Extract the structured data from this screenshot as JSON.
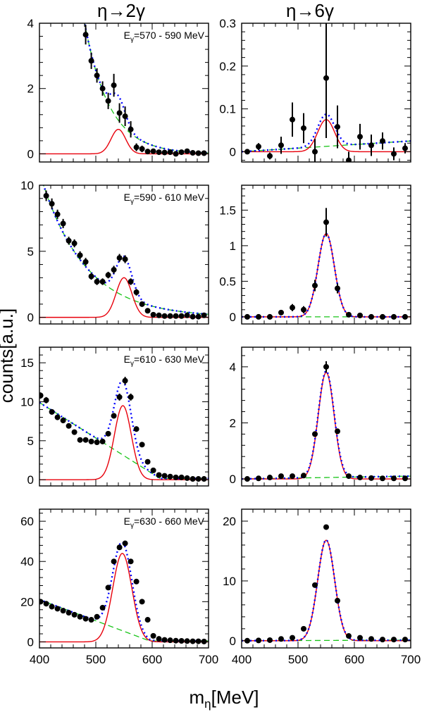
{
  "figure": {
    "column_titles": [
      "η→2γ",
      "η→6γ"
    ],
    "y_axis_label": "counts[a.u.]",
    "x_axis_label": "m_η[MeV]",
    "x_axis_label_parts": {
      "main": "m",
      "sub": "η",
      "rest": "[MeV]"
    }
  },
  "chart_data": [
    {
      "type": "scatter",
      "panel": "row1-left",
      "channel": "η→2γ",
      "annotation": "E_γ=570 - 590 MeV",
      "xlim": [
        400,
        700
      ],
      "ylim": [
        -0.25,
        4
      ],
      "xticks": [
        400,
        500,
        600,
        700
      ],
      "yticks": [
        0,
        2,
        4
      ],
      "show_xticklabels": false,
      "points": [
        [
          482,
          3.65
        ],
        [
          492,
          2.85
        ],
        [
          502,
          2.4
        ],
        [
          512,
          2.0
        ],
        [
          522,
          1.62
        ],
        [
          532,
          2.1
        ],
        [
          542,
          1.25
        ],
        [
          552,
          1.15
        ],
        [
          562,
          0.75
        ],
        [
          572,
          0.2
        ],
        [
          582,
          0.15
        ],
        [
          592,
          0.07
        ],
        [
          602,
          0.08
        ],
        [
          612,
          0.05
        ],
        [
          622,
          0.04
        ],
        [
          632,
          0.05
        ],
        [
          642,
          0.0
        ],
        [
          652,
          0.05
        ],
        [
          662,
          0.08
        ],
        [
          672,
          0.03
        ],
        [
          682,
          0.02
        ],
        [
          692,
          0.02
        ]
      ],
      "errors": [
        0.3,
        0.25,
        0.22,
        0.22,
        0.25,
        0.35,
        0.3,
        0.3,
        0.25,
        0.12,
        0.1,
        0.06,
        0.06,
        0.05,
        0.05,
        0.05,
        0.04,
        0.04,
        0.05,
        0.04,
        0.04,
        0.04
      ],
      "signal": {
        "amp": 0.75,
        "mean": 540,
        "sigma": 13
      },
      "background": {
        "kind": "exp",
        "a": 4.5,
        "x0": 475,
        "tau": 44
      }
    },
    {
      "type": "scatter",
      "panel": "row1-right",
      "channel": "η→6γ",
      "xlim": [
        400,
        700
      ],
      "ylim": [
        -0.024,
        0.3
      ],
      "xticks": [
        400,
        500,
        600,
        700
      ],
      "yticks": [
        0,
        0.1,
        0.2,
        0.3
      ],
      "show_xticklabels": false,
      "points": [
        [
          410,
          0.0
        ],
        [
          430,
          0.012
        ],
        [
          450,
          -0.01
        ],
        [
          470,
          0.015
        ],
        [
          490,
          0.075
        ],
        [
          510,
          0.055
        ],
        [
          530,
          0.0
        ],
        [
          550,
          0.172
        ],
        [
          570,
          0.058
        ],
        [
          590,
          -0.02
        ],
        [
          610,
          0.035
        ],
        [
          630,
          0.015
        ],
        [
          650,
          0.025
        ],
        [
          670,
          -0.005
        ],
        [
          690,
          0.008
        ]
      ],
      "errors": [
        0.005,
        0.008,
        0.008,
        0.02,
        0.04,
        0.035,
        0.03,
        0.14,
        0.05,
        0.02,
        0.03,
        0.025,
        0.02,
        0.015,
        0.012
      ],
      "signal": {
        "amp": 0.075,
        "mean": 550,
        "sigma": 15
      },
      "background": {
        "kind": "poly",
        "c0": 0.0,
        "c1": 0.025,
        "start": 400,
        "end": 700
      }
    },
    {
      "type": "scatter",
      "panel": "row2-left",
      "channel": "η→2γ",
      "annotation": "E_γ=590 - 610 MeV",
      "xlim": [
        400,
        700
      ],
      "ylim": [
        -0.5,
        10
      ],
      "xticks": [
        400,
        500,
        600,
        700
      ],
      "yticks": [
        0,
        5,
        10
      ],
      "show_xticklabels": false,
      "points": [
        [
          412,
          9.2
        ],
        [
          422,
          8.6
        ],
        [
          432,
          7.8
        ],
        [
          442,
          7.1
        ],
        [
          452,
          5.8
        ],
        [
          462,
          5.6
        ],
        [
          472,
          4.7
        ],
        [
          482,
          4.2
        ],
        [
          492,
          3.1
        ],
        [
          502,
          2.7
        ],
        [
          512,
          2.7
        ],
        [
          522,
          3.2
        ],
        [
          532,
          3.6
        ],
        [
          542,
          4.5
        ],
        [
          552,
          4.4
        ],
        [
          562,
          2.7
        ],
        [
          572,
          1.9
        ],
        [
          582,
          1.0
        ],
        [
          592,
          0.5
        ],
        [
          602,
          0.2
        ],
        [
          612,
          0.15
        ],
        [
          622,
          0.1
        ],
        [
          632,
          0.1
        ],
        [
          642,
          0.1
        ],
        [
          652,
          0.1
        ],
        [
          662,
          0.15
        ],
        [
          672,
          0.05
        ],
        [
          682,
          0.05
        ],
        [
          692,
          0.15
        ]
      ],
      "errors": [
        0.4,
        0.4,
        0.35,
        0.35,
        0.3,
        0.3,
        0.3,
        0.3,
        0.25,
        0.25,
        0.25,
        0.25,
        0.3,
        0.3,
        0.3,
        0.25,
        0.25,
        0.2,
        0.15,
        0.12,
        0.1,
        0.1,
        0.1,
        0.1,
        0.1,
        0.1,
        0.1,
        0.1,
        0.1
      ],
      "signal": {
        "amp": 3.0,
        "mean": 550,
        "sigma": 14
      },
      "background": {
        "kind": "exp",
        "a": 10.3,
        "x0": 405,
        "tau": 78
      }
    },
    {
      "type": "scatter",
      "panel": "row2-right",
      "channel": "η→6γ",
      "xlim": [
        400,
        700
      ],
      "ylim": [
        -0.1,
        1.85
      ],
      "xticks": [
        400,
        500,
        600,
        700
      ],
      "yticks": [
        0,
        0.5,
        1,
        1.5
      ],
      "show_xticklabels": false,
      "points": [
        [
          410,
          0.0
        ],
        [
          430,
          0.0
        ],
        [
          450,
          0.0
        ],
        [
          470,
          0.06
        ],
        [
          490,
          0.13
        ],
        [
          510,
          0.1
        ],
        [
          530,
          0.44
        ],
        [
          550,
          1.33
        ],
        [
          570,
          0.4
        ],
        [
          590,
          0.03
        ],
        [
          610,
          0.02
        ],
        [
          630,
          0.0
        ],
        [
          650,
          0.0
        ],
        [
          670,
          0.0
        ],
        [
          690,
          0.0
        ]
      ],
      "errors": [
        0.01,
        0.02,
        0.02,
        0.03,
        0.05,
        0.05,
        0.08,
        0.2,
        0.07,
        0.03,
        0.03,
        0.02,
        0.02,
        0.02,
        0.02
      ],
      "signal": {
        "amp": 1.17,
        "mean": 550,
        "sigma": 14.5
      },
      "background": {
        "kind": "poly",
        "c0": 0.0,
        "c1": 0.0,
        "start": 400,
        "end": 700
      }
    },
    {
      "type": "scatter",
      "panel": "row3-left",
      "channel": "η→2γ",
      "annotation": "E_γ=610 - 630 MeV",
      "xlim": [
        400,
        700
      ],
      "ylim": [
        -0.8,
        17
      ],
      "xticks": [
        400,
        500,
        600,
        700
      ],
      "yticks": [
        0,
        5,
        10,
        15
      ],
      "show_xticklabels": false,
      "points": [
        [
          402,
          10.8
        ],
        [
          412,
          10.2
        ],
        [
          422,
          8.7
        ],
        [
          432,
          8.0
        ],
        [
          442,
          7.6
        ],
        [
          452,
          6.9
        ],
        [
          462,
          6.1
        ],
        [
          472,
          5.1
        ],
        [
          482,
          5.1
        ],
        [
          492,
          4.9
        ],
        [
          502,
          4.8
        ],
        [
          512,
          4.9
        ],
        [
          522,
          5.9
        ],
        [
          532,
          8.2
        ],
        [
          542,
          10.6
        ],
        [
          552,
          12.7
        ],
        [
          562,
          10.6
        ],
        [
          572,
          6.5
        ],
        [
          582,
          4.5
        ],
        [
          592,
          2.3
        ],
        [
          602,
          1.2
        ],
        [
          612,
          0.6
        ],
        [
          622,
          0.5
        ],
        [
          632,
          0.4
        ],
        [
          642,
          0.3
        ],
        [
          652,
          0.3
        ],
        [
          662,
          0.2
        ],
        [
          672,
          0.1
        ],
        [
          682,
          0.1
        ],
        [
          692,
          0.1
        ]
      ],
      "errors": [
        0.4,
        0.4,
        0.35,
        0.35,
        0.35,
        0.3,
        0.3,
        0.3,
        0.3,
        0.3,
        0.3,
        0.3,
        0.3,
        0.35,
        0.45,
        0.5,
        0.45,
        0.35,
        0.3,
        0.25,
        0.2,
        0.15,
        0.12,
        0.1,
        0.1,
        0.1,
        0.1,
        0.1,
        0.1,
        0.1
      ],
      "signal": {
        "amp": 9.5,
        "mean": 548,
        "sigma": 15
      },
      "background": {
        "kind": "lin",
        "start": 400,
        "startVal": 9.9,
        "slope": -0.0455,
        "tail": 0.15
      }
    },
    {
      "type": "scatter",
      "panel": "row3-right",
      "channel": "η→6γ",
      "xlim": [
        400,
        700
      ],
      "ylim": [
        -0.25,
        4.7
      ],
      "xticks": [
        400,
        500,
        600,
        700
      ],
      "yticks": [
        0,
        2,
        4
      ],
      "show_xticklabels": false,
      "points": [
        [
          410,
          0.0
        ],
        [
          430,
          0.02
        ],
        [
          450,
          0.05
        ],
        [
          470,
          0.1
        ],
        [
          490,
          0.1
        ],
        [
          510,
          0.12
        ],
        [
          530,
          1.6
        ],
        [
          550,
          4.0
        ],
        [
          570,
          1.7
        ],
        [
          590,
          0.1
        ],
        [
          610,
          0.05
        ],
        [
          630,
          0.03
        ],
        [
          650,
          0.02
        ],
        [
          670,
          0.02
        ],
        [
          690,
          0.02
        ]
      ],
      "errors": [
        0.01,
        0.02,
        0.03,
        0.04,
        0.05,
        0.05,
        0.1,
        0.2,
        0.1,
        0.04,
        0.03,
        0.02,
        0.02,
        0.02,
        0.02
      ],
      "signal": {
        "amp": 3.8,
        "mean": 550,
        "sigma": 14
      },
      "background": {
        "kind": "poly",
        "c0": 0.0,
        "c1": 0.1,
        "start": 400,
        "end": 700
      }
    },
    {
      "type": "scatter",
      "panel": "row4-left",
      "channel": "η→2γ",
      "annotation": "E_γ=630 - 660 MeV",
      "xlim": [
        400,
        700
      ],
      "ylim": [
        -3,
        66
      ],
      "xticks": [
        400,
        500,
        600,
        700
      ],
      "yticks": [
        0,
        20,
        40,
        60
      ],
      "show_xticklabels": true,
      "points": [
        [
          402,
          20.0
        ],
        [
          412,
          19.0
        ],
        [
          422,
          17.5
        ],
        [
          432,
          16.5
        ],
        [
          442,
          15.5
        ],
        [
          452,
          14.5
        ],
        [
          462,
          13.5
        ],
        [
          472,
          12.5
        ],
        [
          482,
          11.5
        ],
        [
          492,
          11.0
        ],
        [
          502,
          12.5
        ],
        [
          512,
          17.0
        ],
        [
          522,
          27.0
        ],
        [
          532,
          40.0
        ],
        [
          542,
          47.0
        ],
        [
          552,
          49.0
        ],
        [
          562,
          40.0
        ],
        [
          572,
          30.0
        ],
        [
          582,
          20.0
        ],
        [
          592,
          11.0
        ],
        [
          602,
          3.0
        ],
        [
          612,
          1.5
        ],
        [
          622,
          1.0
        ],
        [
          632,
          0.8
        ],
        [
          642,
          0.6
        ],
        [
          652,
          0.5
        ],
        [
          662,
          0.4
        ],
        [
          672,
          0.3
        ],
        [
          682,
          0.3
        ],
        [
          692,
          0.2
        ]
      ],
      "errors": [
        0.8,
        0.8,
        0.7,
        0.7,
        0.7,
        0.7,
        0.6,
        0.6,
        0.6,
        0.6,
        0.6,
        0.7,
        0.9,
        1.0,
        1.1,
        1.1,
        1.0,
        0.9,
        0.8,
        0.6,
        0.4,
        0.3,
        0.3,
        0.2,
        0.2,
        0.2,
        0.2,
        0.2,
        0.2,
        0.2
      ],
      "signal": {
        "amp": 44.0,
        "mean": 547,
        "sigma": 17
      },
      "background": {
        "kind": "lin",
        "start": 400,
        "startVal": 21.0,
        "slope": -0.105,
        "tail": 0.5
      }
    },
    {
      "type": "scatter",
      "panel": "row4-right",
      "channel": "η→6γ",
      "xlim": [
        400,
        700
      ],
      "ylim": [
        -1.2,
        22
      ],
      "xticks": [
        400,
        500,
        600,
        700
      ],
      "yticks": [
        0,
        10,
        20
      ],
      "show_xticklabels": true,
      "points": [
        [
          410,
          0.0
        ],
        [
          430,
          0.05
        ],
        [
          450,
          0.1
        ],
        [
          470,
          0.3
        ],
        [
          490,
          0.5
        ],
        [
          510,
          2.0
        ],
        [
          530,
          9.3
        ],
        [
          550,
          19.0
        ],
        [
          570,
          6.7
        ],
        [
          590,
          0.8
        ],
        [
          610,
          0.5
        ],
        [
          630,
          0.3
        ],
        [
          650,
          0.2
        ],
        [
          670,
          0.2
        ],
        [
          690,
          0.2
        ]
      ],
      "errors": [
        0.05,
        0.05,
        0.1,
        0.15,
        0.2,
        0.3,
        0.4,
        0.4,
        0.35,
        0.2,
        0.15,
        0.1,
        0.1,
        0.1,
        0.1
      ],
      "signal": {
        "amp": 16.8,
        "mean": 550,
        "sigma": 15
      },
      "background": {
        "kind": "poly",
        "c0": 0.0,
        "c1": 0.1,
        "start": 400,
        "end": 700
      }
    }
  ],
  "styles": {
    "signal_color": "#e8000b",
    "background_color": "#19c419",
    "total_color": "#0000ff",
    "marker_color": "#000000"
  }
}
